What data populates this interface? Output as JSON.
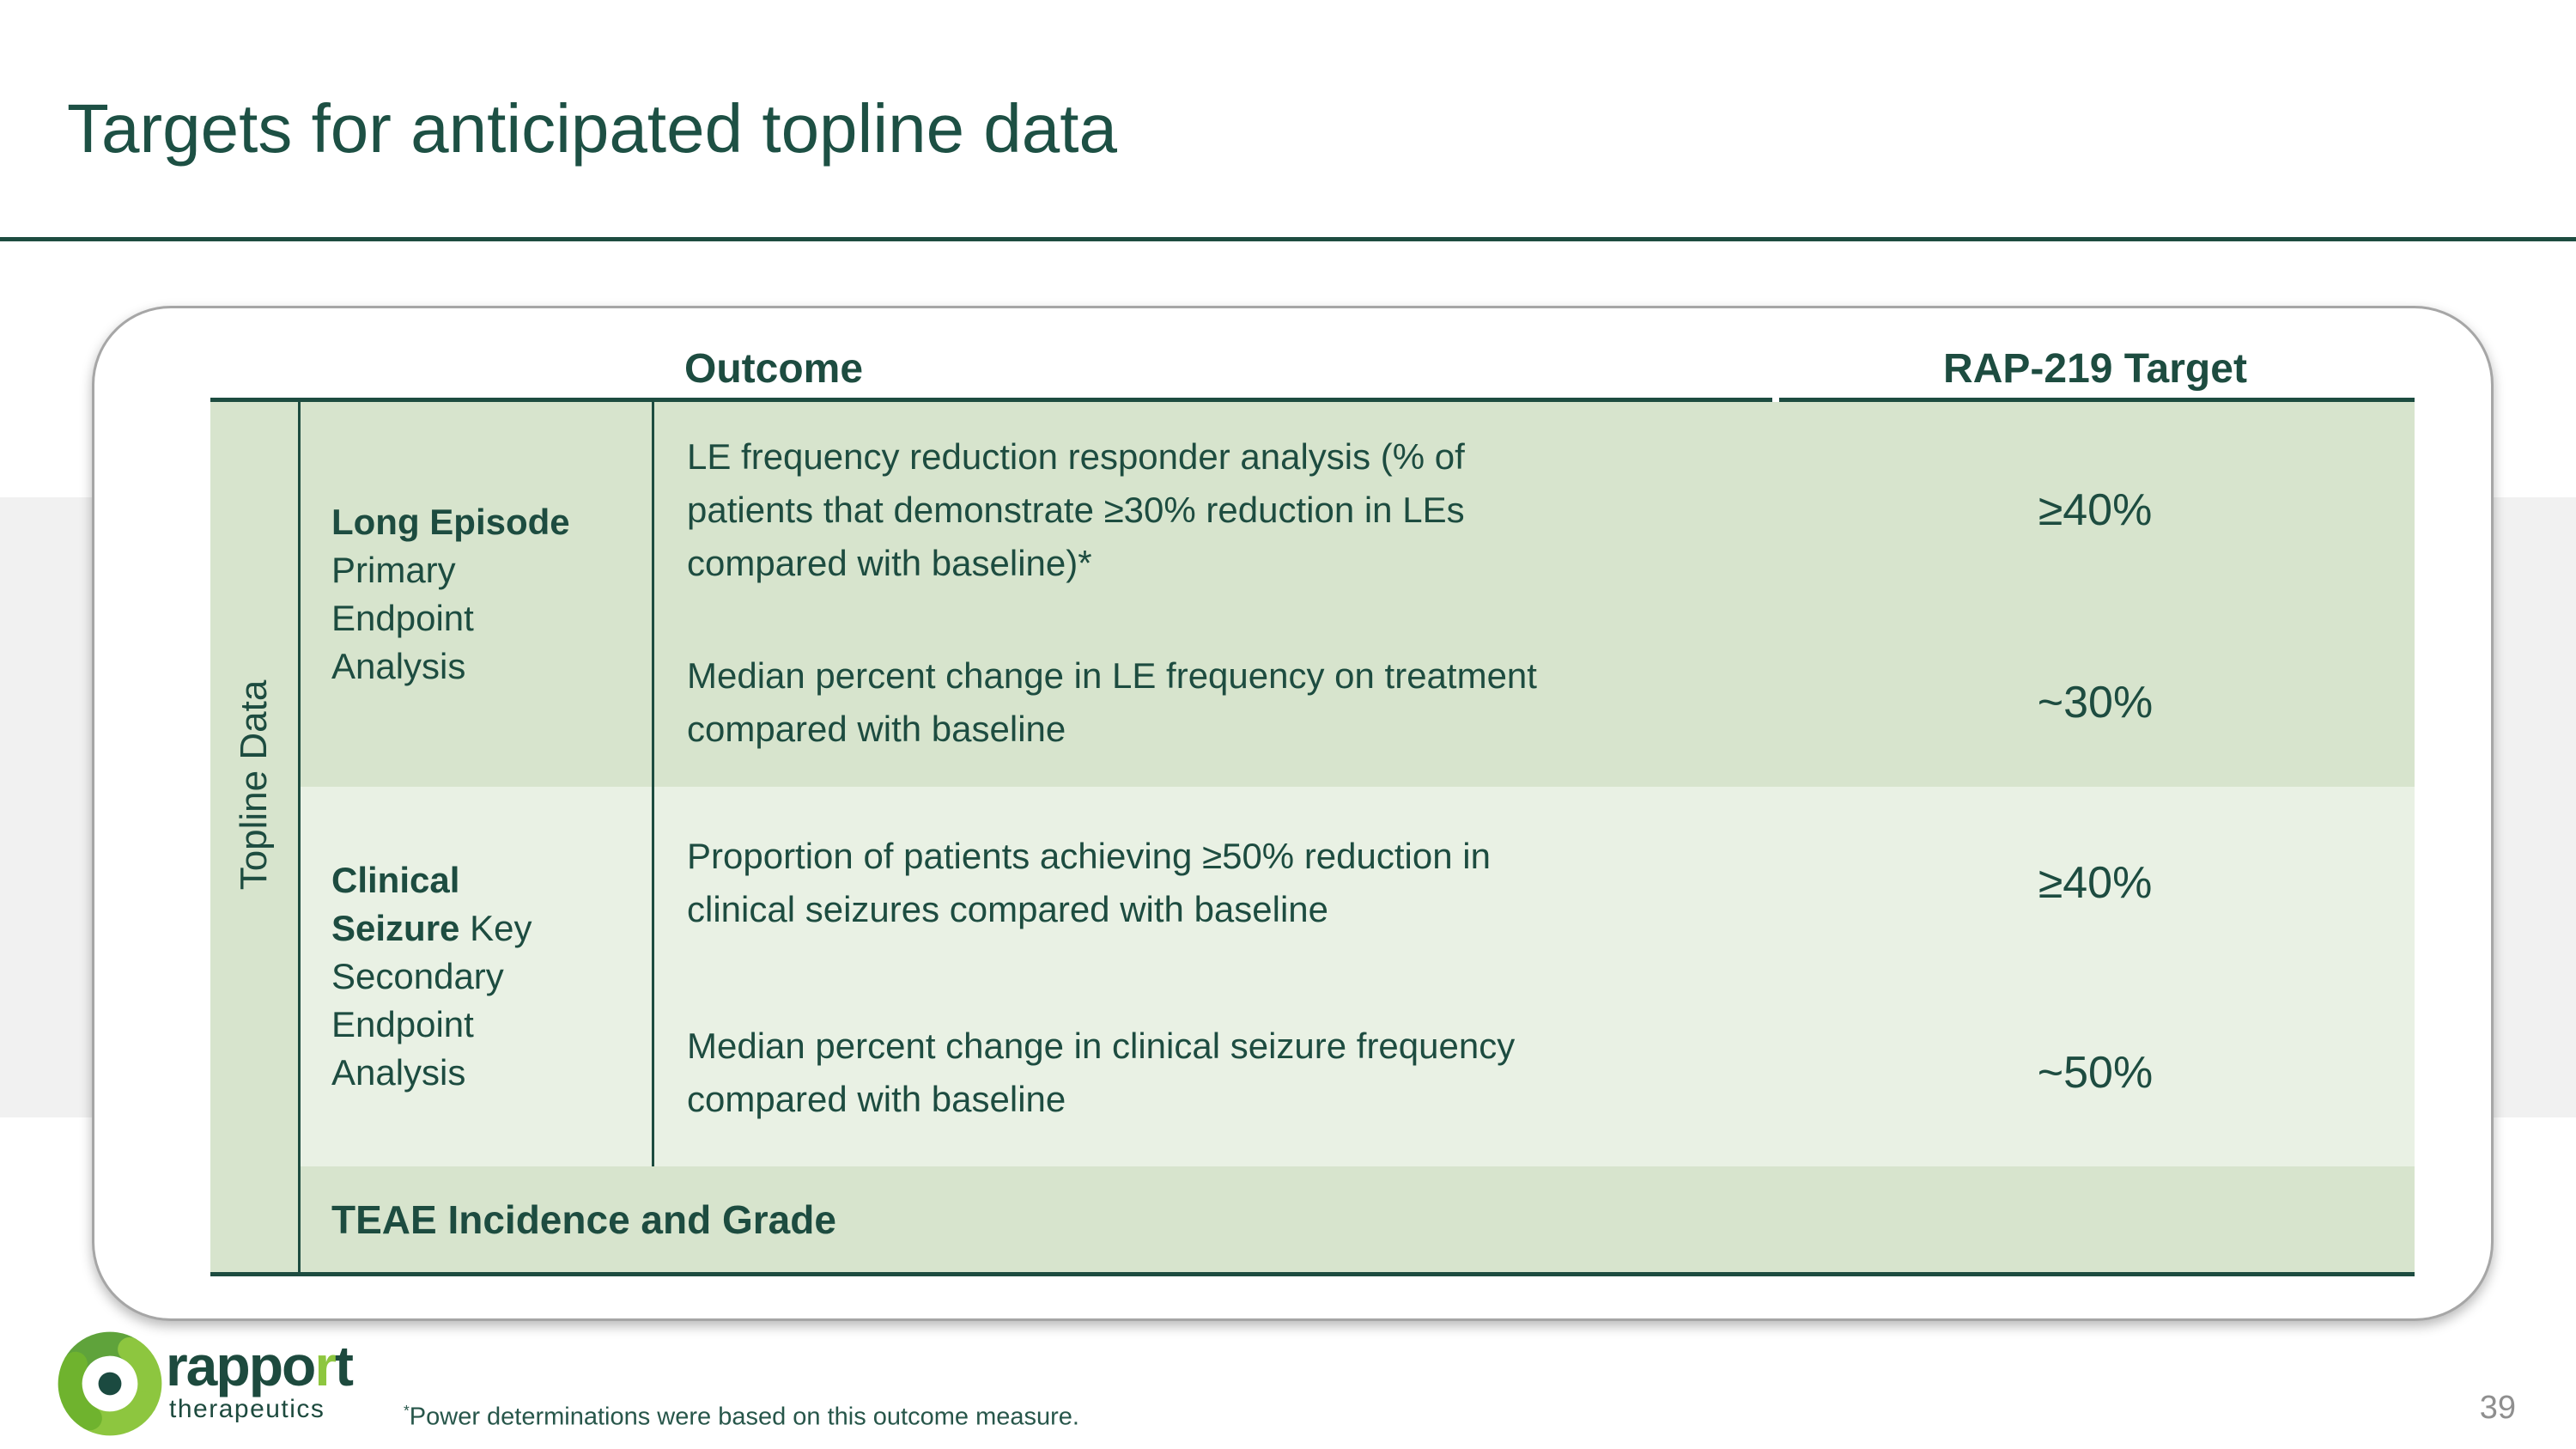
{
  "slide": {
    "title": "Targets for anticipated topline data",
    "page_number": "39",
    "footnote_marker": "*",
    "footnote_text": "Power determinations were based on this outcome measure."
  },
  "logo": {
    "word_part1": "rappo",
    "word_accent": "r",
    "word_part2": "t",
    "subtext": "therapeutics",
    "icon": "pinwheel-flower-icon",
    "colors": {
      "lime": "#8dc63f",
      "leaf": "#5fa33b",
      "core": "#1b4a40",
      "wordmark": "#1d4a3e"
    }
  },
  "table": {
    "side_label": "Topline Data",
    "headers": {
      "outcome": "Outcome",
      "target": "RAP-219 Target"
    },
    "groups": [
      {
        "label_lines": [
          {
            "segments": [
              {
                "text": "Long Episode",
                "bold": true
              }
            ]
          },
          {
            "segments": [
              {
                "text": "Primary",
                "bold": false
              }
            ]
          },
          {
            "segments": [
              {
                "text": "Endpoint",
                "bold": false
              }
            ]
          },
          {
            "segments": [
              {
                "text": "Analysis",
                "bold": false
              }
            ]
          }
        ],
        "rows": [
          {
            "outcome": "LE frequency reduction responder analysis (% of\npatients that demonstrate ≥30% reduction in LEs\ncompared with baseline)*",
            "target": "≥40%"
          },
          {
            "outcome": "Median percent change in LE frequency on treatment\ncompared with baseline",
            "target": "~30%"
          }
        ]
      },
      {
        "label_lines": [
          {
            "segments": [
              {
                "text": "Clinical",
                "bold": true
              }
            ]
          },
          {
            "segments": [
              {
                "text": "Seizure",
                "bold": true
              },
              {
                "text": " Key",
                "bold": false
              }
            ]
          },
          {
            "segments": [
              {
                "text": "Secondary",
                "bold": false
              }
            ]
          },
          {
            "segments": [
              {
                "text": "Endpoint",
                "bold": false
              }
            ]
          },
          {
            "segments": [
              {
                "text": "Analysis",
                "bold": false
              }
            ]
          }
        ],
        "rows": [
          {
            "outcome": "Proportion of patients achieving ≥50% reduction in\nclinical seizures compared with baseline",
            "target": "≥40%"
          },
          {
            "outcome": "Median percent change in clinical seizure frequency\ncompared with baseline",
            "target": "~50%"
          }
        ]
      }
    ],
    "teae_row_label": "TEAE Incidence and Grade"
  },
  "colors": {
    "dark_green": "#1d4c40",
    "title_green": "#1d5044",
    "row_green_dark": "#d7e4cd",
    "row_green_light": "#e9f1e4",
    "background_band": "#f1f1f1",
    "card_border": "#a6a6a6",
    "page_number_gray": "#8f8f8f"
  }
}
